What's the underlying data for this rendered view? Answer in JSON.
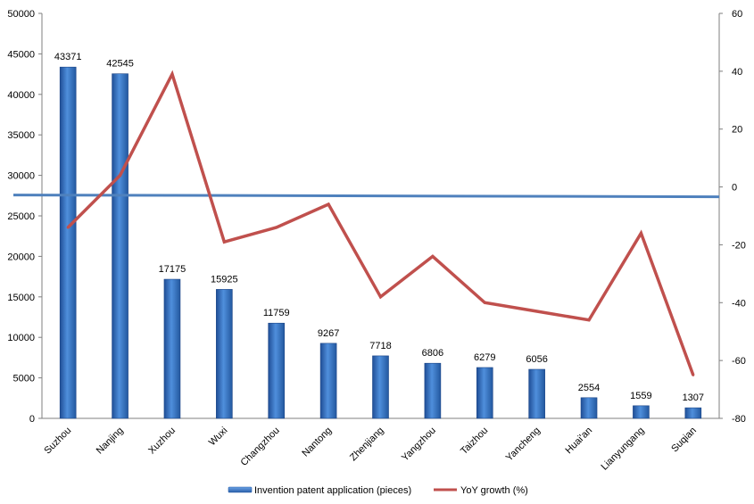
{
  "chart_data": {
    "type": "bar",
    "combo": "bar + line (dual y-axis)",
    "categories": [
      "Suzhou",
      "Nanjing",
      "Xuzhou",
      "Wuxi",
      "Changzhou",
      "Nantong",
      "Zhenjiang",
      "Yangzhou",
      "Taizhou",
      "Yancheng",
      "Huai'an",
      "Lianyungang",
      "Suqian"
    ],
    "series": [
      {
        "name": "Invention patent application (pieces)",
        "type": "bar",
        "axis": "left",
        "color": "#3a78c8",
        "values": [
          43371,
          42545,
          17175,
          15925,
          11759,
          9267,
          7718,
          6806,
          6279,
          6056,
          2554,
          1559,
          1307
        ],
        "data_labels": [
          "43371",
          "42545",
          "17175",
          "15925",
          "11759",
          "9267",
          "7718",
          "6806",
          "6279",
          "6056",
          "2554",
          "1559",
          "1307"
        ]
      },
      {
        "name": "YoY growth (%)",
        "type": "line",
        "axis": "right",
        "color": "#c0504d",
        "values": [
          -14,
          4,
          39,
          -19,
          -14,
          -6,
          -38,
          -24,
          -40,
          -43,
          -46,
          -16,
          -65
        ]
      }
    ],
    "y_left": {
      "min": 0,
      "max": 50000,
      "ticks": [
        "0",
        "5000",
        "10000",
        "15000",
        "20000",
        "25000",
        "30000",
        "35000",
        "40000",
        "45000",
        "50000"
      ]
    },
    "y_right": {
      "min": -80,
      "max": 60,
      "ticks": [
        "60",
        "40",
        "20",
        "0",
        "-20",
        "-40",
        "-60",
        "-80"
      ]
    },
    "zero_line_color": "#4f81bd",
    "grid": false,
    "legend_position": "bottom"
  }
}
